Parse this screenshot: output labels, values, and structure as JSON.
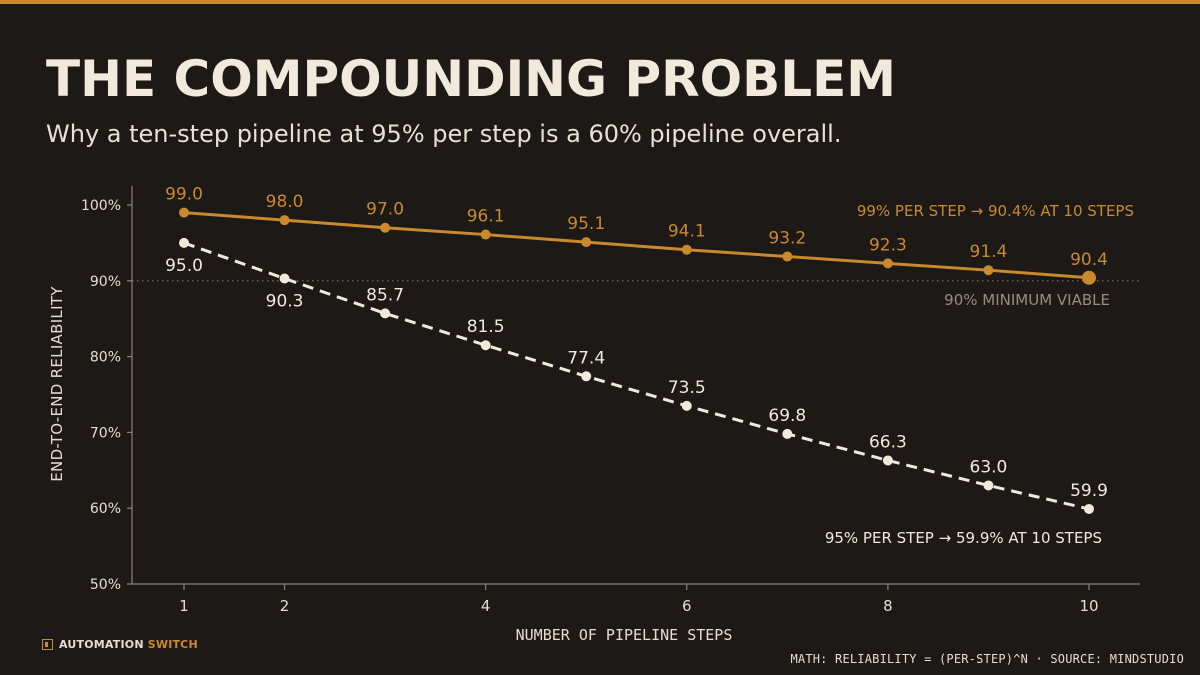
{
  "header": {
    "title": "THE COMPOUNDING PROBLEM",
    "subtitle": "Why a ten-step pipeline at 95% per step is a 60% pipeline overall."
  },
  "footer": {
    "brand_part1": "AUTOMATION",
    "brand_part2": "SWITCH",
    "source": "MATH: RELIABILITY = (PER-STEP)^N · SOURCE: MINDSTUDIO"
  },
  "colors": {
    "background": "#1c1916",
    "accent": "#c98a2e",
    "series_95": "#f1e9dc",
    "axis": "#8a8278",
    "text": "#e6ddd0",
    "reference_text": "#968d80"
  },
  "chart_data": {
    "type": "line",
    "xlabel": "NUMBER OF PIPELINE STEPS",
    "ylabel": "END-TO-END RELIABILITY",
    "xlim": [
      0.5,
      10.5
    ],
    "ylim": [
      50,
      100
    ],
    "x_ticks": [
      1,
      2,
      4,
      6,
      8,
      10
    ],
    "y_ticks": [
      50,
      60,
      70,
      80,
      90,
      100
    ],
    "y_tick_suffix": "%",
    "grid": false,
    "reference_line": {
      "y": 90,
      "label": "90% MINIMUM VIABLE",
      "style": "dotted"
    },
    "x": [
      1,
      2,
      3,
      4,
      5,
      6,
      7,
      8,
      9,
      10
    ],
    "series": [
      {
        "id": "s99",
        "values": [
          99.0,
          98.0,
          97.0,
          96.1,
          95.1,
          94.1,
          93.2,
          92.3,
          91.4,
          90.4
        ],
        "labels": [
          "99.0",
          "98.0",
          "97.0",
          "96.1",
          "95.1",
          "94.1",
          "93.2",
          "92.3",
          "91.4",
          "90.4"
        ],
        "color": "#c98a2e",
        "style": "solid",
        "annotation": "99% PER STEP → 90.4% AT 10 STEPS"
      },
      {
        "id": "s95",
        "values": [
          95.0,
          90.3,
          85.7,
          81.5,
          77.4,
          73.5,
          69.8,
          66.3,
          63.0,
          59.9
        ],
        "labels": [
          "95.0",
          "90.3",
          "85.7",
          "81.5",
          "77.4",
          "73.5",
          "69.8",
          "66.3",
          "63.0",
          "59.9"
        ],
        "color": "#f1e9dc",
        "style": "dashed",
        "annotation": "95% PER STEP → 59.9% AT 10 STEPS"
      }
    ]
  }
}
